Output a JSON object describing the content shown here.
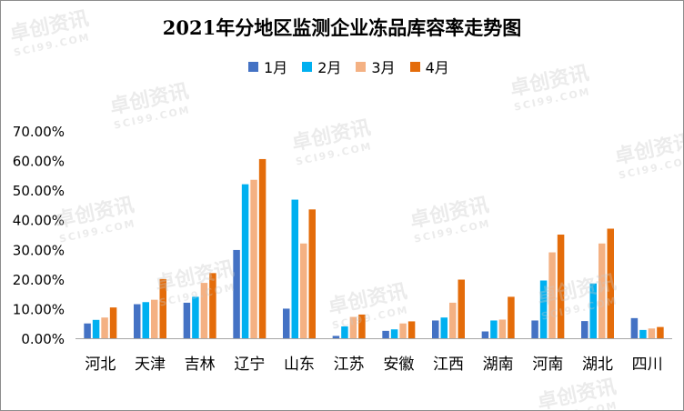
{
  "chart_data": {
    "type": "bar",
    "title": "2021年分地区监测企业冻品库容率走势图",
    "categories": [
      "河北",
      "天津",
      "吉林",
      "辽宁",
      "山东",
      "江苏",
      "安徽",
      "江西",
      "湖南",
      "河南",
      "湖北",
      "四川"
    ],
    "series": [
      {
        "name": "1月",
        "color": "#4472C4",
        "values": [
          5.0,
          11.5,
          12.0,
          29.8,
          10.0,
          0.8,
          2.5,
          6.0,
          2.3,
          6.0,
          5.8,
          6.8
        ]
      },
      {
        "name": "2月",
        "color": "#00B0F0",
        "values": [
          6.2,
          12.2,
          14.0,
          52.0,
          46.8,
          4.0,
          3.0,
          7.0,
          6.0,
          19.5,
          18.5,
          2.8
        ]
      },
      {
        "name": "3月",
        "color": "#F4B183",
        "values": [
          7.0,
          13.0,
          18.7,
          53.5,
          32.0,
          7.2,
          5.0,
          12.0,
          6.3,
          29.0,
          32.0,
          3.3
        ]
      },
      {
        "name": "4月",
        "color": "#E46C0A",
        "values": [
          10.4,
          20.0,
          22.0,
          60.5,
          43.5,
          8.0,
          5.7,
          19.8,
          14.0,
          35.0,
          37.0,
          3.8
        ]
      }
    ],
    "yticks": [
      "0.00%",
      "10.00%",
      "20.00%",
      "30.00%",
      "40.00%",
      "50.00%",
      "60.00%",
      "70.00%"
    ],
    "ylim": [
      0,
      70
    ],
    "legend_position": "top",
    "grid": false
  },
  "watermark": {
    "cn": "卓创资讯",
    "en": "SCI99.COM"
  }
}
